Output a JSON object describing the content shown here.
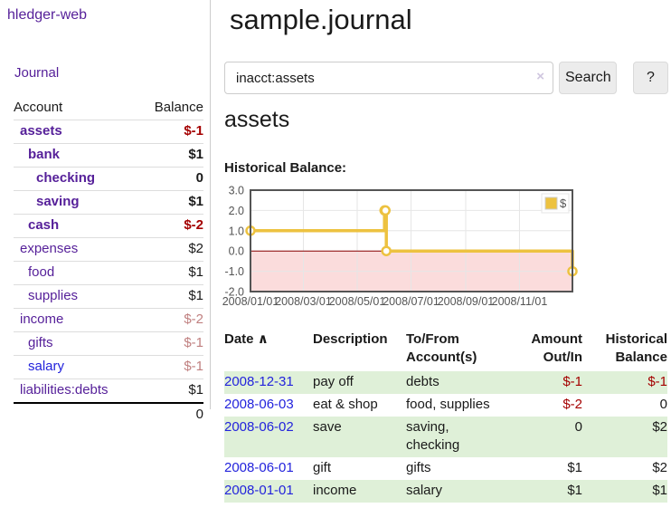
{
  "app": {
    "title": "hledger-web"
  },
  "colors": {
    "link_purple": "#551f99",
    "link_blue": "#2323dc",
    "negative_strong": "#a40000",
    "negative_weak": "#c08080",
    "row_stripe_green": "#dff0d8",
    "chart_line_gold": "#edc240",
    "chart_negative_fill": "#fbdcdc",
    "chart_zero_line": "#8b0000",
    "axis_text_gray": "#545454",
    "button_bg": "#ececec"
  },
  "sidebar": {
    "journal_link": "Journal",
    "accounts_table": {
      "headers": [
        "Account",
        "Balance"
      ],
      "rows": [
        {
          "name": "assets",
          "balance": "$-1",
          "indent": 1,
          "bold": true,
          "link_color": "purple",
          "balance_style": "neg"
        },
        {
          "name": "bank",
          "balance": "$1",
          "indent": 2,
          "bold": true,
          "link_color": "purple",
          "balance_style": "pos"
        },
        {
          "name": "checking",
          "balance": "0",
          "indent": 3,
          "bold": true,
          "link_color": "purple",
          "balance_style": "pos"
        },
        {
          "name": "saving",
          "balance": "$1",
          "indent": 3,
          "bold": true,
          "link_color": "purple",
          "balance_style": "pos"
        },
        {
          "name": "cash",
          "balance": "$-2",
          "indent": 2,
          "bold": true,
          "link_color": "purple",
          "balance_style": "neg"
        },
        {
          "name": "expenses",
          "balance": "$2",
          "indent": 1,
          "bold": false,
          "link_color": "purple",
          "balance_style": "pos"
        },
        {
          "name": "food",
          "balance": "$1",
          "indent": 2,
          "bold": false,
          "link_color": "purple",
          "balance_style": "pos"
        },
        {
          "name": "supplies",
          "balance": "$1",
          "indent": 2,
          "bold": false,
          "link_color": "purple",
          "balance_style": "pos"
        },
        {
          "name": "income",
          "balance": "$-2",
          "indent": 1,
          "bold": false,
          "link_color": "purple",
          "balance_style": "negw"
        },
        {
          "name": "gifts",
          "balance": "$-1",
          "indent": 2,
          "bold": false,
          "link_color": "purple",
          "balance_style": "negw"
        },
        {
          "name": "salary",
          "balance": "$-1",
          "indent": 2,
          "bold": false,
          "link_color": "blue",
          "balance_style": "negw"
        },
        {
          "name": "liabilities:debts",
          "balance": "$1",
          "indent": 1,
          "bold": false,
          "link_color": "purple",
          "balance_style": "pos"
        }
      ],
      "total": "0"
    }
  },
  "main": {
    "title": "sample.journal",
    "search": {
      "value": "inacct:assets",
      "clear_icon": "×",
      "button_label": "Search",
      "help_label": "?"
    },
    "heading": "assets",
    "chart_label": "Historical Balance:",
    "register_table": {
      "headers": [
        "Date",
        "Description",
        "To/From Account(s)",
        "Amount Out/In",
        "Historical Balance"
      ],
      "sort_icon": "∧",
      "rows": [
        {
          "date": "2008-12-31",
          "description": "pay off",
          "accounts": "debts",
          "amount": "$-1",
          "amount_negative": true,
          "balance": "$-1",
          "balance_negative": true
        },
        {
          "date": "2008-06-03",
          "description": "eat & shop",
          "accounts": "food, supplies",
          "amount": "$-2",
          "amount_negative": true,
          "balance": "0",
          "balance_negative": false
        },
        {
          "date": "2008-06-02",
          "description": "save",
          "accounts": "saving, checking",
          "amount": "0",
          "amount_negative": false,
          "balance": "$2",
          "balance_negative": false
        },
        {
          "date": "2008-06-01",
          "description": "gift",
          "accounts": "gifts",
          "amount": "$1",
          "amount_negative": false,
          "balance": "$2",
          "balance_negative": false
        },
        {
          "date": "2008-01-01",
          "description": "income",
          "accounts": "salary",
          "amount": "$1",
          "amount_negative": false,
          "balance": "$1",
          "balance_negative": false
        }
      ]
    }
  },
  "chart_data": {
    "type": "line",
    "variant": "step",
    "title": "Historical Balance",
    "xlabel": "",
    "ylabel": "",
    "ylim": [
      -2,
      3
    ],
    "y_ticks": [
      3.0,
      2.0,
      1.0,
      0.0,
      -1.0,
      -2.0
    ],
    "x_ticks": [
      {
        "pos": 0.0,
        "label": "2008/01/01"
      },
      {
        "pos": 0.1644,
        "label": "2008/03/01"
      },
      {
        "pos": 0.3315,
        "label": "2008/05/01"
      },
      {
        "pos": 0.4986,
        "label": "2008/07/01"
      },
      {
        "pos": 0.6685,
        "label": "2008/09/01"
      },
      {
        "pos": 0.8356,
        "label": "2008/11/01"
      }
    ],
    "series": [
      {
        "name": "$",
        "color": "#edc240",
        "points": [
          {
            "date": "2008-01-01",
            "x": 0.0,
            "y": 1
          },
          {
            "date": "2008-06-01",
            "x": 0.4164,
            "y": 2
          },
          {
            "date": "2008-06-02",
            "x": 0.4192,
            "y": 2
          },
          {
            "date": "2008-06-03",
            "x": 0.4219,
            "y": 0
          },
          {
            "date": "2008-12-31",
            "x": 1.0,
            "y": -1
          }
        ]
      }
    ],
    "legend": {
      "position": "top-right",
      "entries": [
        "$"
      ]
    },
    "grid": true
  }
}
